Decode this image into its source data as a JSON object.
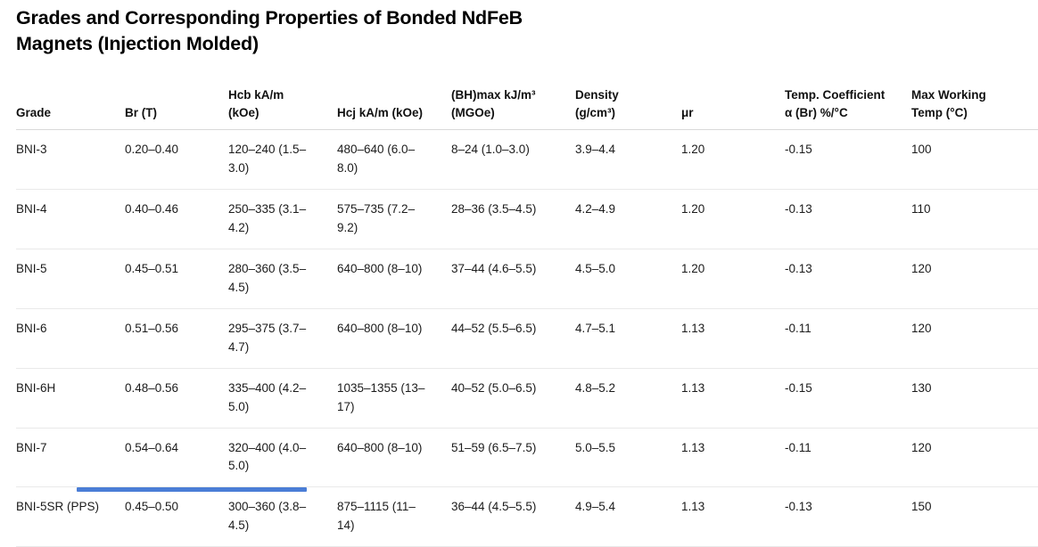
{
  "page": {
    "title": "Grades and Corresponding Properties of Bonded NdFeB Magnets (Injection Molded)"
  },
  "table": {
    "columns": [
      "Grade",
      "Br (T)",
      "Hcb kA/m (kOe)",
      "Hcj kA/m (kOe)",
      "(BH)max kJ/m³ (MGOe)",
      "Density (g/cm³)",
      "μr",
      "Temp. Coefficient α (Br) %/°C",
      "Max Working Temp (°C)"
    ],
    "rows": [
      [
        "BNI-3",
        "0.20–0.40",
        "120–240 (1.5–3.0)",
        "480–640 (6.0–8.0)",
        "8–24 (1.0–3.0)",
        "3.9–4.4",
        "1.20",
        "-0.15",
        "100"
      ],
      [
        "BNI-4",
        "0.40–0.46",
        "250–335 (3.1–4.2)",
        "575–735 (7.2–9.2)",
        "28–36 (3.5–4.5)",
        "4.2–4.9",
        "1.20",
        "-0.13",
        "110"
      ],
      [
        "BNI-5",
        "0.45–0.51",
        "280–360 (3.5–4.5)",
        "640–800 (8–10)",
        "37–44 (4.6–5.5)",
        "4.5–5.0",
        "1.20",
        "-0.13",
        "120"
      ],
      [
        "BNI-6",
        "0.51–0.56",
        "295–375 (3.7–4.7)",
        "640–800 (8–10)",
        "44–52 (5.5–6.5)",
        "4.7–5.1",
        "1.13",
        "-0.11",
        "120"
      ],
      [
        "BNI-6H",
        "0.48–0.56",
        "335–400 (4.2–5.0)",
        "1035–1355 (13–17)",
        "40–52 (5.0–6.5)",
        "4.8–5.2",
        "1.13",
        "-0.15",
        "130"
      ],
      [
        "BNI-7",
        "0.54–0.64",
        "320–400 (4.0–5.0)",
        "640–800 (8–10)",
        "51–59 (6.5–7.5)",
        "5.0–5.5",
        "1.13",
        "-0.11",
        "120"
      ],
      [
        "BNI-5SR (PPS)",
        "0.45–0.50",
        "300–360 (3.8–4.5)",
        "875–1115 (11–14)",
        "36–44 (4.5–5.5)",
        "4.9–5.4",
        "1.13",
        "-0.13",
        "150"
      ]
    ]
  },
  "bottom_partial_element": {
    "color": "#4a7dd6"
  }
}
